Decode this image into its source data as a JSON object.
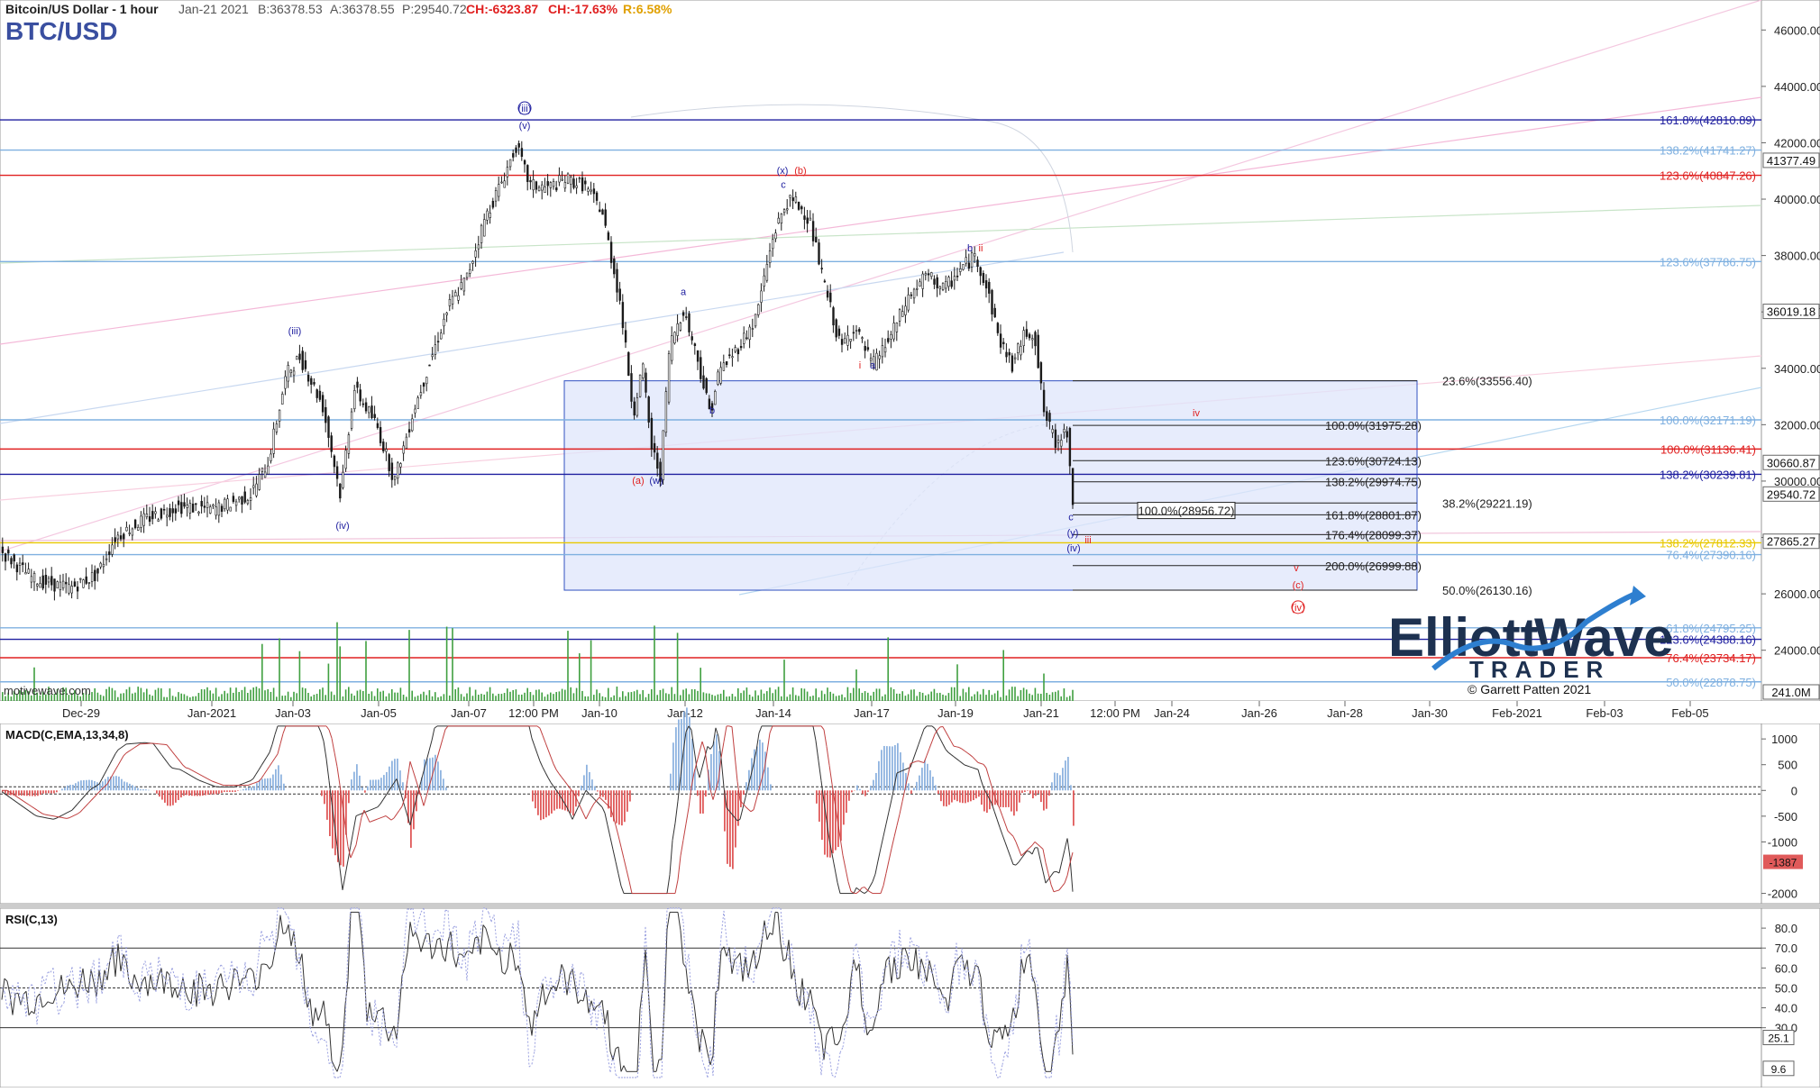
{
  "header": {
    "symbol_title": "Bitcoin/US Dollar - 1 hour",
    "date": "Jan-21 2021",
    "bid": "B:36378.53",
    "ask": "A:36378.55",
    "price": "P:29540.72",
    "change": "CH:-6323.87",
    "change_pct": "CH:-17.63%",
    "range": "R:6.58%",
    "ticker": "BTC/USD"
  },
  "colors": {
    "candle": "#1a1a1a",
    "fib_red": "#e02020",
    "fib_blue": "#2020a0",
    "fib_light_blue": "#7fb0e0",
    "fib_black": "#202020",
    "box_fill": "#dfe6fb",
    "box_stroke": "#3050c0",
    "volume": "#40a040",
    "macd_pos": "#8fb4e0",
    "macd_neg": "#e05a5a",
    "yellow_line": "#e8c800"
  },
  "watermark": {
    "brand_word1": "Elliott",
    "brand_word2": "Wave",
    "brand_sub": "TRADER",
    "copyright": "© Garrett Patten 2021",
    "source": "motivewave.com"
  },
  "chart_data": [
    {
      "type": "candlestick",
      "title": "BTC/USD",
      "x_tick_labels": [
        "Dec-29",
        "Jan-2021",
        "Jan-03",
        "Jan-05",
        "Jan-07",
        "12:00 PM",
        "Jan-10",
        "Jan-12",
        "Jan-14",
        "Jan-17",
        "Jan-19",
        "Jan-21",
        "12:00 PM",
        "Jan-24",
        "Jan-26",
        "Jan-28",
        "Jan-30",
        "Feb-2021",
        "Feb-03",
        "Feb-05"
      ],
      "y_tick_labels": [
        "46000.00",
        "44000.00",
        "42000.00",
        "40000.00",
        "38000.00",
        "36000.00",
        "34000.00",
        "32000.00",
        "30000.00",
        "28000.00",
        "26000.00",
        "24000.00"
      ],
      "ylim": [
        22200,
        47000
      ],
      "price_badges": [
        {
          "text": "41377.49",
          "value": 41377.49
        },
        {
          "text": "36019.18",
          "value": 36019.18
        },
        {
          "text": "30660.87",
          "value": 30660.87
        },
        {
          "text": "29540.72",
          "value": 29540.72
        },
        {
          "text": "27865.27",
          "value": 27865.27
        }
      ],
      "fib_lines": [
        {
          "label": "161.8%(42810.89)",
          "value": 42810.89,
          "color": "blue",
          "style": "label"
        },
        {
          "label": "138.2%(41741.27)",
          "value": 41741.27,
          "color": "light_blue",
          "style": "label"
        },
        {
          "label": "123.6%(40847.26)",
          "value": 40847.26,
          "color": "red",
          "style": "label"
        },
        {
          "label": "123.6%(37786.75)",
          "value": 37786.75,
          "color": "light_blue",
          "style": "label"
        },
        {
          "label": "100.0%(32171.19)",
          "value": 32171.19,
          "color": "light_blue",
          "style": "label"
        },
        {
          "label": "100.0%(31136.41)",
          "value": 31136.41,
          "color": "red",
          "style": "label"
        },
        {
          "label": "138.2%(30239.81)",
          "value": 30239.81,
          "color": "blue",
          "style": "label"
        },
        {
          "label": "138.2%(27812.33)",
          "value": 27812.33,
          "color": "yellow",
          "style": "label"
        },
        {
          "label": "76.4%(27390.16)",
          "value": 27390.16,
          "color": "light_blue",
          "style": "label"
        },
        {
          "label": "61.8%(24795.25)",
          "value": 24795.25,
          "color": "light_blue",
          "style": "label"
        },
        {
          "label": "123.6%(24388.16)",
          "value": 24388.16,
          "color": "blue",
          "style": "label"
        },
        {
          "label": "76.4%(23734.17)",
          "value": 23734.17,
          "color": "red",
          "style": "label"
        },
        {
          "label": "50.0%(22878.75)",
          "value": 22878.75,
          "color": "light_blue",
          "style": "label"
        }
      ],
      "retracement_levels": [
        {
          "label": "23.6%(33556.40)",
          "value": 33556.4
        },
        {
          "label": "38.2%(29221.19)",
          "value": 29221.19
        },
        {
          "label": "50.0%(26130.16)",
          "value": 26130.16
        }
      ],
      "extension_levels": [
        {
          "label": "100.0%(31975.28)",
          "value": 31975.28
        },
        {
          "label": "123.6%(30724.13)",
          "value": 30724.13
        },
        {
          "label": "138.2%(29974.75)",
          "value": 29974.75
        },
        {
          "label": "100.0%(28956.72)",
          "value": 28956.72,
          "boxed": true
        },
        {
          "label": "161.8%(28801.87)",
          "value": 28801.87
        },
        {
          "label": "176.4%(28099.37)",
          "value": 28099.37
        },
        {
          "label": "200.0%(26999.88)",
          "value": 26999.88
        }
      ],
      "target_box": {
        "top": 33556.4,
        "bottom": 26130.16
      },
      "wave_labels": [
        {
          "text": "(iii)",
          "color": "blue",
          "value": 43100
        },
        {
          "text": "(v)",
          "color": "blue",
          "value": 42500
        },
        {
          "text": "(iii)",
          "color": "blue",
          "value": 35200
        },
        {
          "text": "(iv)",
          "color": "blue",
          "value": 28300
        },
        {
          "text": "(x)",
          "color": "blue",
          "value": 40900
        },
        {
          "text": "(b)",
          "color": "red",
          "value": 40900
        },
        {
          "text": "c",
          "color": "blue",
          "value": 40400
        },
        {
          "text": "a",
          "color": "blue",
          "value": 36600
        },
        {
          "text": "b",
          "color": "blue",
          "value": 32400
        },
        {
          "text": "(a)",
          "color": "red",
          "value": 29900
        },
        {
          "text": "(w)",
          "color": "blue",
          "value": 29900
        },
        {
          "text": "i",
          "color": "red",
          "value": 34000
        },
        {
          "text": "a",
          "color": "blue",
          "value": 34000
        },
        {
          "text": "b",
          "color": "blue",
          "value": 38150
        },
        {
          "text": "ii",
          "color": "red",
          "value": 38150
        },
        {
          "text": "iv",
          "color": "red",
          "value": 32300
        },
        {
          "text": "c",
          "color": "blue",
          "value": 28600
        },
        {
          "text": "(y)",
          "color": "blue",
          "value": 28050
        },
        {
          "text": "iii",
          "color": "red",
          "value": 27800
        },
        {
          "text": "(iv)",
          "color": "blue",
          "value": 27500
        },
        {
          "text": "v",
          "color": "red",
          "value": 26800
        },
        {
          "text": "(c)",
          "color": "red",
          "value": 26200
        },
        {
          "text": "(iv)",
          "color": "red",
          "value": 25400
        }
      ],
      "volume_badge": "241.0M"
    },
    {
      "type": "line",
      "title": "MACD(C,EMA,13,34,8)",
      "y_tick_labels": [
        "1000",
        "500",
        "0",
        "-500",
        "-1000",
        "-2000"
      ],
      "ylim": [
        -2200,
        1300
      ],
      "last_value_badge": "-1387"
    },
    {
      "type": "line",
      "title": "RSI(C,13)",
      "y_tick_labels": [
        "80.0",
        "70.0",
        "60.0",
        "50.0",
        "40.0",
        "30.0"
      ],
      "ylim": [
        0,
        90
      ],
      "reference_lines": [
        70,
        50,
        30
      ],
      "last_value_badges": [
        "25.1",
        "9.6"
      ]
    }
  ]
}
